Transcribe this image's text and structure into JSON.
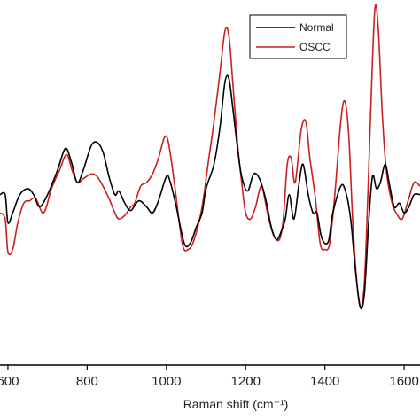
{
  "chart_data": {
    "type": "line",
    "title": "",
    "xlabel": "Raman shift (cm⁻¹)",
    "ylabel": "",
    "xlim": [
      580,
      1640
    ],
    "ylim": [
      -1.45,
      1.55
    ],
    "x_ticks": [
      600,
      800,
      1000,
      1200,
      1400,
      1600
    ],
    "x_tick_labels": [
      "600",
      "800",
      "1000",
      "1200",
      "1400",
      "1600"
    ],
    "grid": false,
    "legend_position": "top-right",
    "series": [
      {
        "name": "Normal",
        "color": "#000000",
        "points": [
          [
            580,
            -0.05
          ],
          [
            593,
            -0.05
          ],
          [
            600,
            -0.28
          ],
          [
            612,
            -0.2
          ],
          [
            630,
            -0.05
          ],
          [
            650,
            0.0
          ],
          [
            665,
            -0.05
          ],
          [
            680,
            -0.15
          ],
          [
            700,
            -0.05
          ],
          [
            725,
            0.15
          ],
          [
            745,
            0.33
          ],
          [
            760,
            0.22
          ],
          [
            775,
            0.05
          ],
          [
            790,
            0.15
          ],
          [
            810,
            0.35
          ],
          [
            825,
            0.38
          ],
          [
            840,
            0.3
          ],
          [
            855,
            0.1
          ],
          [
            870,
            -0.05
          ],
          [
            880,
            -0.02
          ],
          [
            895,
            -0.12
          ],
          [
            910,
            -0.18
          ],
          [
            930,
            -0.1
          ],
          [
            950,
            -0.15
          ],
          [
            965,
            -0.2
          ],
          [
            980,
            -0.1
          ],
          [
            1000,
            0.1
          ],
          [
            1010,
            0.05
          ],
          [
            1025,
            -0.15
          ],
          [
            1045,
            -0.45
          ],
          [
            1060,
            -0.45
          ],
          [
            1075,
            -0.32
          ],
          [
            1090,
            -0.2
          ],
          [
            1100,
            0.0
          ],
          [
            1120,
            0.2
          ],
          [
            1135,
            0.5
          ],
          [
            1148,
            0.88
          ],
          [
            1158,
            0.9
          ],
          [
            1168,
            0.65
          ],
          [
            1180,
            0.32
          ],
          [
            1190,
            0.1
          ],
          [
            1205,
            -0.02
          ],
          [
            1220,
            0.12
          ],
          [
            1235,
            0.08
          ],
          [
            1250,
            -0.08
          ],
          [
            1265,
            -0.32
          ],
          [
            1278,
            -0.42
          ],
          [
            1290,
            -0.35
          ],
          [
            1300,
            -0.25
          ],
          [
            1310,
            -0.05
          ],
          [
            1322,
            -0.25
          ],
          [
            1335,
            0.05
          ],
          [
            1345,
            0.2
          ],
          [
            1358,
            -0.05
          ],
          [
            1370,
            -0.2
          ],
          [
            1380,
            -0.2
          ],
          [
            1390,
            -0.38
          ],
          [
            1400,
            -0.45
          ],
          [
            1410,
            -0.42
          ],
          [
            1420,
            -0.2
          ],
          [
            1440,
            0.02
          ],
          [
            1452,
            -0.02
          ],
          [
            1465,
            -0.25
          ],
          [
            1478,
            -0.7
          ],
          [
            1490,
            -0.98
          ],
          [
            1500,
            -0.85
          ],
          [
            1510,
            -0.3
          ],
          [
            1520,
            0.1
          ],
          [
            1530,
            0.0
          ],
          [
            1540,
            0.05
          ],
          [
            1552,
            0.2
          ],
          [
            1562,
            0.05
          ],
          [
            1575,
            -0.15
          ],
          [
            1588,
            -0.12
          ],
          [
            1600,
            -0.2
          ],
          [
            1612,
            -0.15
          ],
          [
            1625,
            -0.05
          ],
          [
            1640,
            -0.05
          ]
        ]
      },
      {
        "name": "OSCC",
        "color": "#cc1f1f",
        "points": [
          [
            580,
            -0.2
          ],
          [
            593,
            -0.25
          ],
          [
            600,
            -0.52
          ],
          [
            612,
            -0.5
          ],
          [
            625,
            -0.28
          ],
          [
            640,
            -0.12
          ],
          [
            655,
            -0.1
          ],
          [
            670,
            -0.08
          ],
          [
            690,
            -0.2
          ],
          [
            710,
            0.0
          ],
          [
            730,
            0.15
          ],
          [
            748,
            0.28
          ],
          [
            762,
            0.15
          ],
          [
            775,
            0.05
          ],
          [
            790,
            0.08
          ],
          [
            810,
            0.12
          ],
          [
            825,
            0.1
          ],
          [
            840,
            0.02
          ],
          [
            855,
            -0.08
          ],
          [
            870,
            -0.2
          ],
          [
            880,
            -0.25
          ],
          [
            895,
            -0.22
          ],
          [
            910,
            -0.15
          ],
          [
            920,
            -0.12
          ],
          [
            935,
            0.02
          ],
          [
            950,
            0.05
          ],
          [
            965,
            0.12
          ],
          [
            980,
            0.25
          ],
          [
            995,
            0.42
          ],
          [
            1005,
            0.38
          ],
          [
            1020,
            0.05
          ],
          [
            1040,
            -0.45
          ],
          [
            1055,
            -0.5
          ],
          [
            1070,
            -0.42
          ],
          [
            1090,
            -0.15
          ],
          [
            1105,
            0.2
          ],
          [
            1120,
            0.55
          ],
          [
            1135,
            0.95
          ],
          [
            1148,
            1.3
          ],
          [
            1158,
            1.25
          ],
          [
            1168,
            0.85
          ],
          [
            1180,
            0.35
          ],
          [
            1190,
            0.05
          ],
          [
            1200,
            -0.2
          ],
          [
            1212,
            -0.25
          ],
          [
            1225,
            -0.15
          ],
          [
            1240,
            0.02
          ],
          [
            1255,
            -0.2
          ],
          [
            1270,
            -0.38
          ],
          [
            1285,
            -0.42
          ],
          [
            1295,
            -0.25
          ],
          [
            1305,
            0.2
          ],
          [
            1315,
            0.25
          ],
          [
            1325,
            0.05
          ],
          [
            1340,
            0.48
          ],
          [
            1352,
            0.55
          ],
          [
            1362,
            0.25
          ],
          [
            1375,
            -0.05
          ],
          [
            1388,
            -0.45
          ],
          [
            1400,
            -0.5
          ],
          [
            1412,
            -0.45
          ],
          [
            1425,
            -0.05
          ],
          [
            1440,
            0.55
          ],
          [
            1450,
            0.72
          ],
          [
            1460,
            0.45
          ],
          [
            1470,
            -0.25
          ],
          [
            1480,
            -0.75
          ],
          [
            1490,
            -0.98
          ],
          [
            1500,
            -0.75
          ],
          [
            1510,
            0.1
          ],
          [
            1520,
            1.05
          ],
          [
            1527,
            1.5
          ],
          [
            1535,
            1.3
          ],
          [
            1545,
            0.6
          ],
          [
            1555,
            0.15
          ],
          [
            1568,
            -0.1
          ],
          [
            1580,
            -0.2
          ],
          [
            1595,
            -0.25
          ],
          [
            1610,
            -0.1
          ],
          [
            1625,
            0.05
          ],
          [
            1640,
            0.02
          ]
        ]
      }
    ]
  }
}
